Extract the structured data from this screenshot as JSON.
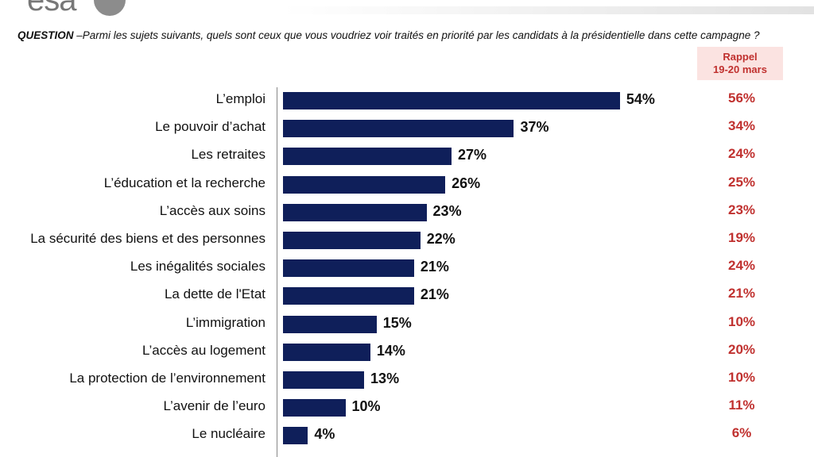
{
  "logo": {
    "text": "esa"
  },
  "question": {
    "label": "QUESTION",
    "text": " –Parmi les sujets suivants, quels sont ceux que vous voudriez voir traités en priorité par les candidats à la présidentielle dans cette campagne ?"
  },
  "rappel": {
    "line1": "Rappel",
    "line2": "19-20 mars"
  },
  "colors": {
    "bar": "#0f1f5a",
    "previous": "#c0312f",
    "rappel_bg": "#fbe3e1"
  },
  "chart_data": {
    "type": "bar",
    "orientation": "horizontal",
    "categories": [
      "L’emploi",
      "Le pouvoir d’achat",
      "Les retraites",
      "L’éducation et la recherche",
      "L’accès aux soins",
      "La sécurité des biens et des personnes",
      "Les inégalités sociales",
      "La dette de l'Etat",
      "L’immigration",
      "L’accès au logement",
      "La protection de l’environnement",
      "L’avenir de l’euro",
      "Le nucléaire"
    ],
    "values": [
      54,
      37,
      27,
      26,
      23,
      22,
      21,
      21,
      15,
      14,
      13,
      10,
      4
    ],
    "value_labels": [
      "54%",
      "37%",
      "27%",
      "26%",
      "23%",
      "22%",
      "21%",
      "21%",
      "15%",
      "14%",
      "13%",
      "10%",
      "4%"
    ],
    "previous_labels": [
      "56%",
      "34%",
      "24%",
      "25%",
      "23%",
      "19%",
      "24%",
      "21%",
      "10%",
      "20%",
      "10%",
      "11%",
      "6%"
    ],
    "previous_values": [
      56,
      34,
      24,
      25,
      23,
      19,
      24,
      21,
      10,
      20,
      10,
      11,
      6
    ],
    "xlim": [
      0,
      60
    ]
  }
}
